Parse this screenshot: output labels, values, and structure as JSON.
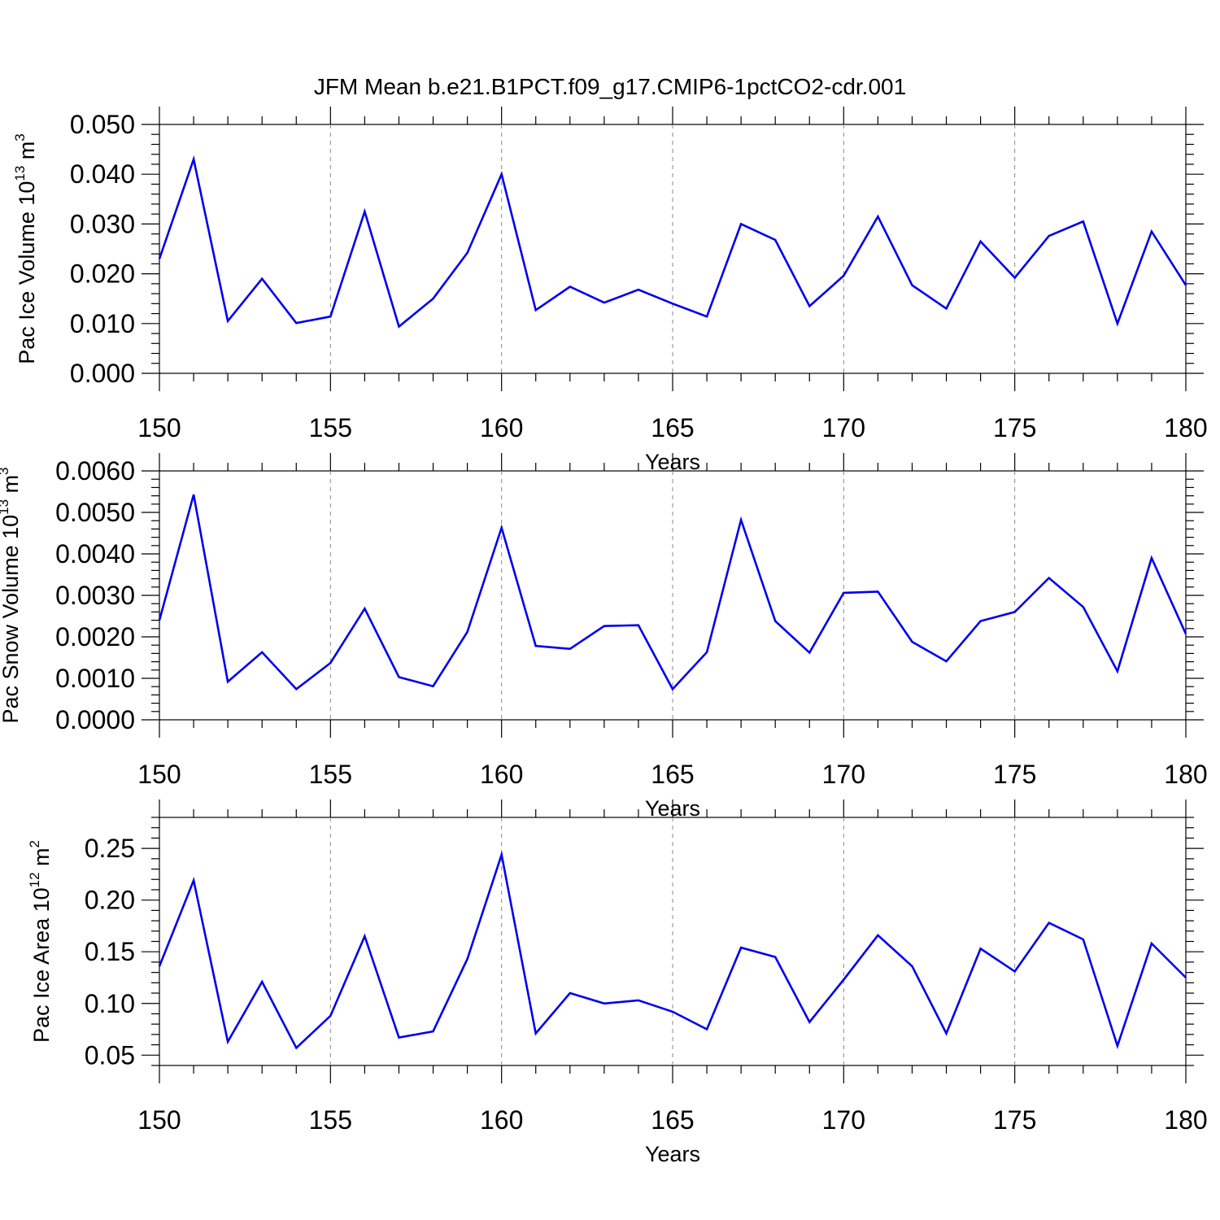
{
  "title": "JFM Mean b.e21.B1PCT.f09_g17.CMIP6-1pctCO2-cdr.001",
  "line_color": "#0000ee",
  "grid_color": "#888888",
  "chart_data": [
    {
      "type": "line",
      "xlabel": "Years",
      "ylabel": {
        "main": "Pac Ice Volume 10",
        "sup": "13",
        "unit": " m",
        "unit_sup": "3"
      },
      "xlim": [
        150,
        180
      ],
      "ylim": [
        0.0,
        0.05
      ],
      "xticks": [
        150,
        155,
        160,
        165,
        170,
        175,
        180
      ],
      "yticks": [
        0.0,
        0.01,
        0.02,
        0.03,
        0.04,
        0.05
      ],
      "ytick_labels": [
        "0.000",
        "0.010",
        "0.020",
        "0.030",
        "0.040",
        "0.050"
      ],
      "grid": "vertical dashed at major x ticks",
      "x": [
        150,
        151,
        152,
        153,
        154,
        155,
        156,
        157,
        158,
        159,
        160,
        161,
        162,
        163,
        164,
        165,
        166,
        167,
        168,
        169,
        170,
        171,
        172,
        173,
        174,
        175,
        176,
        177,
        178,
        179,
        180
      ],
      "values": [
        0.023,
        0.043,
        0.0105,
        0.019,
        0.0101,
        0.0114,
        0.0325,
        0.0094,
        0.015,
        0.0242,
        0.04,
        0.0127,
        0.0174,
        0.0142,
        0.0168,
        0.014,
        0.0114,
        0.03,
        0.0268,
        0.0135,
        0.0196,
        0.0315,
        0.0177,
        0.013,
        0.0265,
        0.0192,
        0.0276,
        0.0305,
        0.01,
        0.0285,
        0.0177
      ]
    },
    {
      "type": "line",
      "xlabel": "Years",
      "ylabel": {
        "main": "Pac Snow Volume 10",
        "sup": "13",
        "unit": " m",
        "unit_sup": "3"
      },
      "xlim": [
        150,
        180
      ],
      "ylim": [
        0.0,
        0.006
      ],
      "xticks": [
        150,
        155,
        160,
        165,
        170,
        175,
        180
      ],
      "yticks": [
        0.0,
        0.001,
        0.002,
        0.003,
        0.004,
        0.005,
        0.006
      ],
      "ytick_labels": [
        "0.0000",
        "0.0010",
        "0.0020",
        "0.0030",
        "0.0040",
        "0.0050",
        "0.0060"
      ],
      "grid": "vertical dashed at major x ticks",
      "x": [
        150,
        151,
        152,
        153,
        154,
        155,
        156,
        157,
        158,
        159,
        160,
        161,
        162,
        163,
        164,
        165,
        166,
        167,
        168,
        169,
        170,
        171,
        172,
        173,
        174,
        175,
        176,
        177,
        178,
        179,
        180
      ],
      "values": [
        0.0024,
        0.00543,
        0.00092,
        0.00163,
        0.00074,
        0.00137,
        0.00268,
        0.00103,
        0.00081,
        0.00212,
        0.00463,
        0.00178,
        0.00171,
        0.00226,
        0.00228,
        0.00074,
        0.00163,
        0.00482,
        0.00238,
        0.00162,
        0.00306,
        0.00309,
        0.00188,
        0.00141,
        0.00238,
        0.0026,
        0.00342,
        0.00272,
        0.00117,
        0.0039,
        0.00207
      ]
    },
    {
      "type": "line",
      "xlabel": "Years",
      "ylabel": {
        "main": "Pac Ice Area 10",
        "sup": "12",
        "unit": " m",
        "unit_sup": "2"
      },
      "xlim": [
        150,
        180
      ],
      "ylim": [
        0.04,
        0.28
      ],
      "xticks": [
        150,
        155,
        160,
        165,
        170,
        175,
        180
      ],
      "yticks": [
        0.05,
        0.1,
        0.15,
        0.2,
        0.25
      ],
      "ytick_labels": [
        "0.05",
        "0.10",
        "0.15",
        "0.20",
        "0.25"
      ],
      "grid": "vertical dashed at major x ticks",
      "x": [
        150,
        151,
        152,
        153,
        154,
        155,
        156,
        157,
        158,
        159,
        160,
        161,
        162,
        163,
        164,
        165,
        166,
        167,
        168,
        169,
        170,
        171,
        172,
        173,
        174,
        175,
        176,
        177,
        178,
        179,
        180
      ],
      "values": [
        0.136,
        0.219,
        0.063,
        0.121,
        0.057,
        0.088,
        0.165,
        0.067,
        0.073,
        0.143,
        0.244,
        0.071,
        0.11,
        0.1,
        0.103,
        0.092,
        0.075,
        0.154,
        0.145,
        0.082,
        0.123,
        0.166,
        0.136,
        0.071,
        0.153,
        0.131,
        0.178,
        0.162,
        0.059,
        0.158,
        0.125
      ]
    }
  ]
}
